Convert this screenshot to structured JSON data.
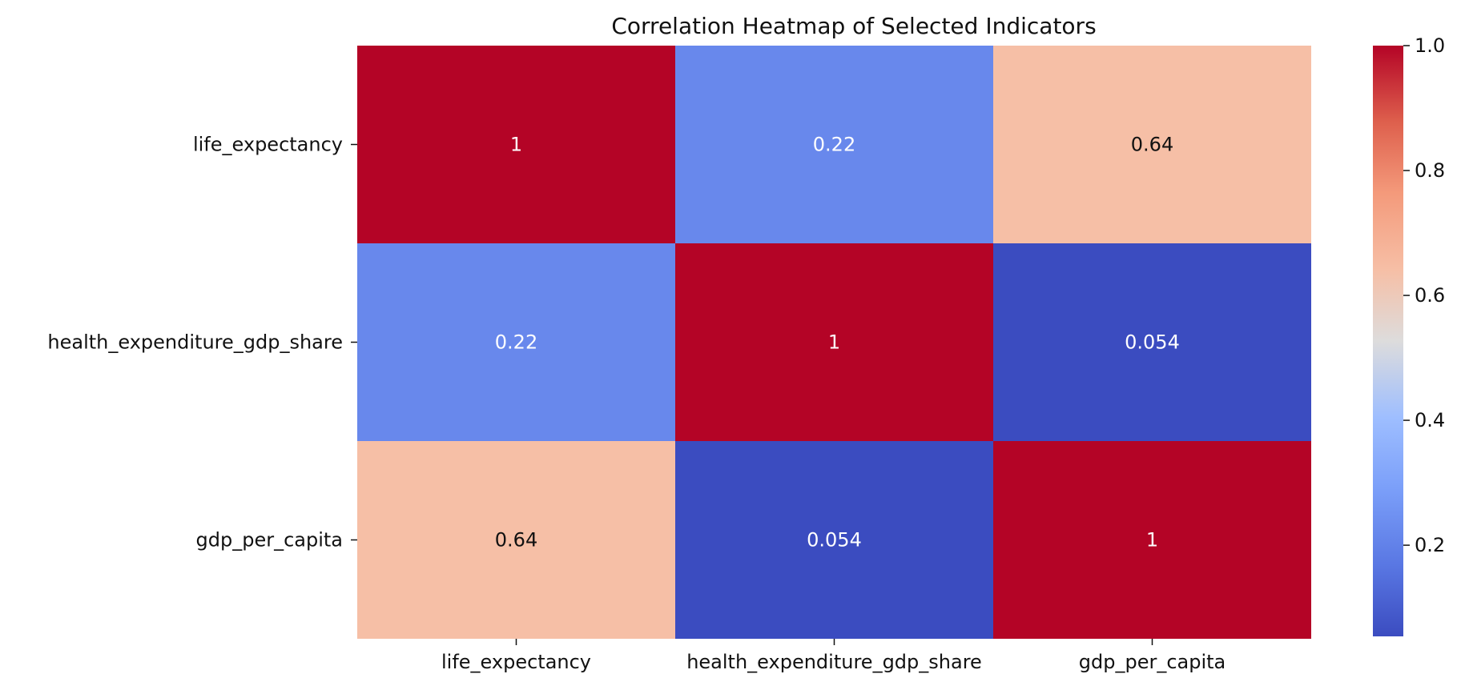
{
  "chart_data": {
    "type": "heatmap",
    "title": "Correlation Heatmap of Selected Indicators",
    "rows": [
      "life_expectancy",
      "health_expenditure_gdp_share",
      "gdp_per_capita"
    ],
    "columns": [
      "life_expectancy",
      "health_expenditure_gdp_share",
      "gdp_per_capita"
    ],
    "values": [
      [
        1,
        0.22,
        0.64
      ],
      [
        0.22,
        1,
        0.054
      ],
      [
        0.64,
        0.054,
        1
      ]
    ],
    "labels": [
      [
        "1",
        "0.22",
        "0.64"
      ],
      [
        "0.22",
        "1",
        "0.054"
      ],
      [
        "0.64",
        "0.054",
        "1"
      ]
    ],
    "colorbar": {
      "range": [
        0.054,
        1
      ],
      "ticks": [
        0.2,
        0.4,
        0.6,
        0.8,
        1.0
      ],
      "tick_labels": [
        "0.2",
        "0.4",
        "0.6",
        "0.8",
        "1.0"
      ],
      "colormap": "coolwarm"
    },
    "grid": false,
    "legend_placement": "right"
  }
}
